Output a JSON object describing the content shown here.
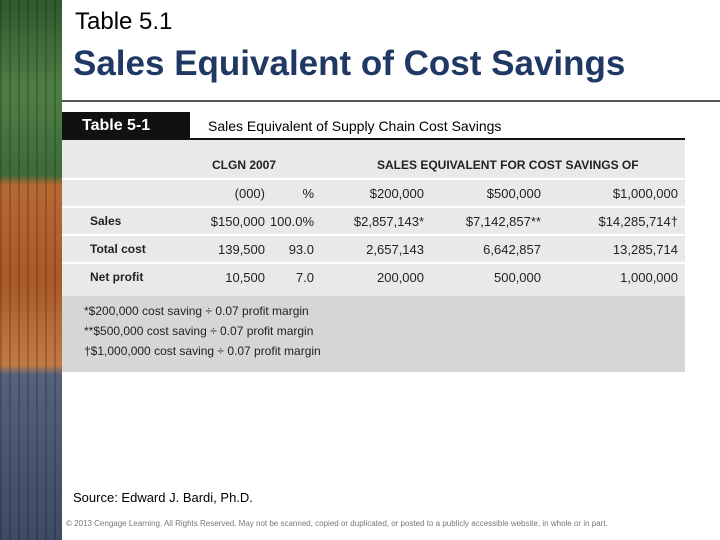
{
  "header": {
    "title": "Table 5.1",
    "subtitle": "Sales Equivalent of Cost Savings"
  },
  "table": {
    "label": "Table 5-1",
    "caption": "Sales Equivalent of Supply Chain Cost Savings",
    "group_headers": [
      "CLGN 2007",
      "SALES EQUIVALENT FOR COST SAVINGS OF"
    ],
    "units_row": [
      "(000)",
      "%",
      "$200,000",
      "$500,000",
      "$1,000,000"
    ],
    "rows": [
      [
        "Sales",
        "$150,000",
        "100.0%",
        "$2,857,143*",
        "$7,142,857**",
        "$14,285,714†"
      ],
      [
        "Total cost",
        "139,500",
        "93.0",
        "2,657,143",
        "6,642,857",
        "13,285,714"
      ],
      [
        "Net profit",
        "10,500",
        "7.0",
        "200,000",
        "500,000",
        "1,000,000"
      ]
    ],
    "footnotes": [
      "*$200,000 cost saving ÷ 0.07 profit margin",
      "**$500,000 cost saving ÷ 0.07 profit margin",
      "†$1,000,000 cost saving ÷ 0.07 profit margin"
    ]
  },
  "source": "Source: Edward J. Bardi, Ph.D.",
  "copyright": "© 2013 Cengage Learning. All Rights Reserved. May not be scanned, copied or duplicated, or posted to a publicly accessible website, in whole or in part."
}
